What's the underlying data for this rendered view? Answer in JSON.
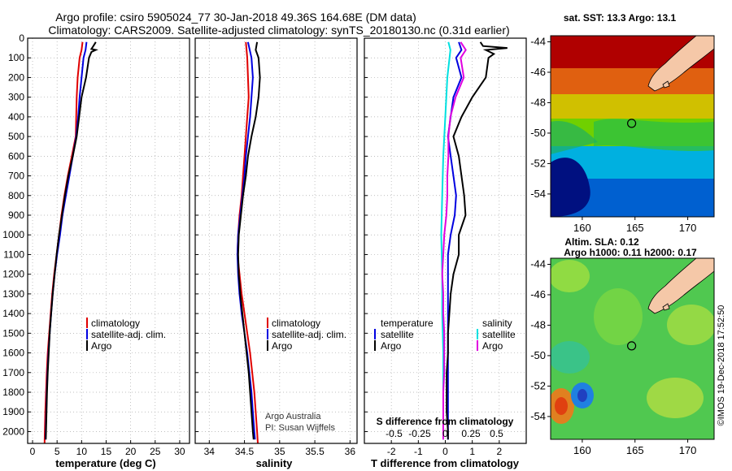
{
  "header": {
    "title_line1": "Argo profile: csiro 5905024_77 30-Jan-2018 49.36S 164.68E (DM data)",
    "title_line2": "Climatology: CARS2009. Satellite-adjusted climatology: synTS_20180130.nc (0.31d earlier)"
  },
  "colors": {
    "climatology": "#e00000",
    "satellite": "#0000e0",
    "argo": "#000000",
    "salinity_satellite": "#00e0e0",
    "salinity_argo": "#e000e0",
    "grid": "#aaaaaa"
  },
  "depth_axis": {
    "ylim": [
      2060,
      0
    ],
    "ticks": [
      "0",
      "100",
      "200",
      "300",
      "400",
      "500",
      "600",
      "700",
      "800",
      "900",
      "1000",
      "1100",
      "1200",
      "1300",
      "1400",
      "1500",
      "1600",
      "1700",
      "1800",
      "1900",
      "2000"
    ]
  },
  "credit": {
    "line1": "Argo Australia",
    "line2": "PI: Susan Wijffels"
  },
  "stamp": "©IMOS 19-Dec-2018 17:52:50",
  "chart_data": [
    {
      "id": "temperature",
      "type": "line",
      "xlabel": "temperature (deg C)",
      "xlim": [
        -1,
        32
      ],
      "xticks": [
        "0",
        "5",
        "10",
        "15",
        "20",
        "25",
        "30"
      ],
      "legend": [
        "climatology",
        "satellite-adj. clim.",
        "Argo"
      ],
      "series": [
        {
          "name": "climatology",
          "color": "#e00000",
          "points": [
            [
              10.2,
              20
            ],
            [
              10.0,
              60
            ],
            [
              9.6,
              100
            ],
            [
              9.2,
              200
            ],
            [
              9.0,
              300
            ],
            [
              8.9,
              400
            ],
            [
              8.8,
              500
            ],
            [
              8.0,
              600
            ],
            [
              7.2,
              700
            ],
            [
              6.5,
              800
            ],
            [
              5.9,
              900
            ],
            [
              5.4,
              1000
            ],
            [
              4.9,
              1100
            ],
            [
              4.4,
              1200
            ],
            [
              4.0,
              1300
            ],
            [
              3.7,
              1400
            ],
            [
              3.4,
              1500
            ],
            [
              3.1,
              1600
            ],
            [
              2.9,
              1700
            ],
            [
              2.75,
              1800
            ],
            [
              2.6,
              1900
            ],
            [
              2.5,
              2000
            ],
            [
              2.45,
              2060
            ]
          ]
        },
        {
          "name": "satellite-adj. clim.",
          "color": "#0000e0",
          "points": [
            [
              11.0,
              20
            ],
            [
              10.8,
              60
            ],
            [
              10.4,
              100
            ],
            [
              10.0,
              200
            ],
            [
              9.6,
              300
            ],
            [
              9.3,
              400
            ],
            [
              8.9,
              500
            ],
            [
              8.2,
              600
            ],
            [
              7.5,
              700
            ],
            [
              6.8,
              800
            ],
            [
              6.1,
              900
            ],
            [
              5.6,
              1000
            ],
            [
              5.0,
              1100
            ],
            [
              4.5,
              1200
            ],
            [
              4.1,
              1300
            ],
            [
              3.8,
              1400
            ],
            [
              3.5,
              1500
            ],
            [
              3.25,
              1600
            ],
            [
              3.05,
              1700
            ],
            [
              2.9,
              1800
            ],
            [
              2.8,
              1900
            ],
            [
              2.7,
              2000
            ],
            [
              2.65,
              2040
            ]
          ]
        },
        {
          "name": "Argo",
          "color": "#000000",
          "points": [
            [
              12.9,
              20
            ],
            [
              12.4,
              40
            ],
            [
              12.0,
              55
            ],
            [
              12.9,
              60
            ],
            [
              12.0,
              70
            ],
            [
              11.5,
              100
            ],
            [
              10.9,
              200
            ],
            [
              10.0,
              300
            ],
            [
              9.5,
              400
            ],
            [
              9.0,
              500
            ],
            [
              8.2,
              600
            ],
            [
              7.3,
              700
            ],
            [
              6.6,
              800
            ],
            [
              6.0,
              900
            ],
            [
              5.4,
              1000
            ],
            [
              4.9,
              1100
            ],
            [
              4.5,
              1200
            ],
            [
              4.1,
              1300
            ],
            [
              3.8,
              1400
            ],
            [
              3.5,
              1500
            ],
            [
              3.3,
              1600
            ],
            [
              3.1,
              1700
            ],
            [
              2.95,
              1800
            ],
            [
              2.85,
              1900
            ],
            [
              2.75,
              2000
            ],
            [
              2.7,
              2040
            ]
          ]
        }
      ]
    },
    {
      "id": "salinity",
      "type": "line",
      "xlabel": "salinity",
      "xlim": [
        33.8,
        36.1
      ],
      "xticks": [
        "34",
        "34.5",
        "35",
        "35.5",
        "36"
      ],
      "legend": [
        "climatology",
        "satellite-adj. clim.",
        "Argo"
      ],
      "series": [
        {
          "name": "climatology",
          "color": "#e00000",
          "points": [
            [
              34.52,
              20
            ],
            [
              34.54,
              100
            ],
            [
              34.55,
              200
            ],
            [
              34.56,
              300
            ],
            [
              34.54,
              400
            ],
            [
              34.52,
              500
            ],
            [
              34.5,
              600
            ],
            [
              34.48,
              700
            ],
            [
              34.46,
              800
            ],
            [
              34.43,
              900
            ],
            [
              34.41,
              1000
            ],
            [
              34.4,
              1100
            ],
            [
              34.43,
              1200
            ],
            [
              34.46,
              1300
            ],
            [
              34.5,
              1400
            ],
            [
              34.54,
              1500
            ],
            [
              34.58,
              1600
            ],
            [
              34.61,
              1700
            ],
            [
              34.64,
              1800
            ],
            [
              34.66,
              1900
            ],
            [
              34.68,
              2000
            ],
            [
              34.69,
              2060
            ]
          ]
        },
        {
          "name": "satellite-adj. clim.",
          "color": "#0000e0",
          "points": [
            [
              34.55,
              20
            ],
            [
              34.6,
              100
            ],
            [
              34.62,
              200
            ],
            [
              34.6,
              300
            ],
            [
              34.58,
              400
            ],
            [
              34.55,
              500
            ],
            [
              34.52,
              600
            ],
            [
              34.5,
              700
            ],
            [
              34.47,
              800
            ],
            [
              34.44,
              900
            ],
            [
              34.41,
              1000
            ],
            [
              34.4,
              1100
            ],
            [
              34.41,
              1200
            ],
            [
              34.43,
              1300
            ],
            [
              34.46,
              1400
            ],
            [
              34.5,
              1500
            ],
            [
              34.54,
              1600
            ],
            [
              34.57,
              1700
            ],
            [
              34.6,
              1800
            ],
            [
              34.62,
              1900
            ],
            [
              34.64,
              2000
            ],
            [
              34.65,
              2040
            ]
          ]
        },
        {
          "name": "Argo",
          "color": "#000000",
          "points": [
            [
              34.68,
              20
            ],
            [
              34.66,
              60
            ],
            [
              34.7,
              100
            ],
            [
              34.72,
              200
            ],
            [
              34.7,
              300
            ],
            [
              34.66,
              400
            ],
            [
              34.6,
              500
            ],
            [
              34.55,
              600
            ],
            [
              34.52,
              700
            ],
            [
              34.48,
              800
            ],
            [
              34.45,
              900
            ],
            [
              34.42,
              1000
            ],
            [
              34.41,
              1100
            ],
            [
              34.42,
              1200
            ],
            [
              34.44,
              1300
            ],
            [
              34.47,
              1400
            ],
            [
              34.5,
              1500
            ],
            [
              34.53,
              1600
            ],
            [
              34.56,
              1700
            ],
            [
              34.58,
              1800
            ],
            [
              34.6,
              1900
            ],
            [
              34.62,
              2000
            ],
            [
              34.63,
              2040
            ]
          ]
        }
      ]
    },
    {
      "id": "difference",
      "type": "line",
      "xlabel": "T difference from climatology",
      "xlabel_top": "S difference from climatology",
      "xlim": [
        -3,
        3
      ],
      "xticks": [
        "-2",
        "-1",
        "0",
        "1",
        "2"
      ],
      "xticks_top": [
        "-0.5",
        "-0.25",
        "0",
        "0.25",
        "0.5"
      ],
      "legend_left": {
        "title": "temperature",
        "items": [
          "satellite",
          "Argo"
        ]
      },
      "legend_right": {
        "title": "salinity",
        "items": [
          "satellite",
          "Argo"
        ]
      },
      "series": [
        {
          "name": "temperature satellite",
          "color": "#0000e0",
          "points": [
            [
              0.5,
              20
            ],
            [
              0.6,
              60
            ],
            [
              0.4,
              100
            ],
            [
              0.6,
              200
            ],
            [
              0.3,
              300
            ],
            [
              0.2,
              400
            ],
            [
              0.1,
              500
            ],
            [
              0.2,
              600
            ],
            [
              0.3,
              700
            ],
            [
              0.4,
              800
            ],
            [
              0.35,
              900
            ],
            [
              0.2,
              1000
            ],
            [
              0.1,
              1100
            ],
            [
              0.1,
              1200
            ],
            [
              0.1,
              1300
            ],
            [
              0.1,
              1400
            ],
            [
              0.1,
              1500
            ],
            [
              0.1,
              1600
            ],
            [
              0.1,
              1700
            ],
            [
              0.1,
              1800
            ],
            [
              0.1,
              1900
            ],
            [
              0.1,
              2000
            ],
            [
              0.1,
              2040
            ]
          ]
        },
        {
          "name": "temperature Argo",
          "color": "#000000",
          "points": [
            [
              1.3,
              20
            ],
            [
              1.4,
              40
            ],
            [
              2.3,
              50
            ],
            [
              1.5,
              60
            ],
            [
              1.8,
              80
            ],
            [
              1.6,
              100
            ],
            [
              1.5,
              200
            ],
            [
              1.0,
              300
            ],
            [
              0.6,
              400
            ],
            [
              0.3,
              500
            ],
            [
              0.5,
              600
            ],
            [
              0.6,
              700
            ],
            [
              0.7,
              800
            ],
            [
              0.75,
              900
            ],
            [
              0.5,
              1000
            ],
            [
              0.5,
              1100
            ],
            [
              0.3,
              1200
            ],
            [
              0.2,
              1300
            ],
            [
              0.15,
              1400
            ],
            [
              0.1,
              1500
            ],
            [
              0.1,
              1600
            ],
            [
              0.05,
              1700
            ],
            [
              0.05,
              1800
            ],
            [
              0.05,
              1900
            ],
            [
              0.1,
              2000
            ],
            [
              0.1,
              2040
            ]
          ]
        },
        {
          "name": "salinity satellite",
          "color": "#00e0e0",
          "points": [
            [
              0.03,
              20
            ],
            [
              0.05,
              60
            ],
            [
              0.02,
              200
            ],
            [
              0.0,
              400
            ],
            [
              -0.02,
              600
            ],
            [
              -0.03,
              800
            ],
            [
              -0.04,
              1000
            ],
            [
              -0.03,
              1200
            ],
            [
              -0.03,
              1400
            ],
            [
              -0.02,
              1600
            ],
            [
              -0.02,
              1800
            ],
            [
              -0.02,
              2000
            ],
            [
              -0.02,
              2040
            ]
          ]
        },
        {
          "name": "salinity Argo",
          "color": "#e000e0",
          "points": [
            [
              0.15,
              20
            ],
            [
              0.2,
              60
            ],
            [
              0.15,
              100
            ],
            [
              0.18,
              200
            ],
            [
              0.1,
              300
            ],
            [
              0.05,
              400
            ],
            [
              0.03,
              500
            ],
            [
              0.03,
              600
            ],
            [
              0.02,
              700
            ],
            [
              0.02,
              800
            ],
            [
              0.01,
              900
            ],
            [
              -0.01,
              1000
            ],
            [
              -0.02,
              1100
            ],
            [
              -0.03,
              1200
            ],
            [
              -0.02,
              1300
            ],
            [
              -0.02,
              1400
            ],
            [
              -0.01,
              1500
            ],
            [
              -0.01,
              1600
            ],
            [
              -0.01,
              1700
            ],
            [
              -0.02,
              1800
            ],
            [
              -0.02,
              1900
            ],
            [
              -0.02,
              2000
            ],
            [
              -0.02,
              2040
            ]
          ]
        }
      ]
    },
    {
      "id": "sst_map",
      "type": "heatmap",
      "title": "sat. SST: 13.3 Argo: 13.1",
      "xlim": [
        157,
        172.5
      ],
      "ylim": [
        -55.5,
        -43.6
      ],
      "xticks": [
        "160",
        "165",
        "170"
      ],
      "yticks": [
        "-44",
        "-46",
        "-48",
        "-50",
        "-52",
        "-54"
      ],
      "marker": {
        "lon": 164.68,
        "lat": -49.36
      }
    },
    {
      "id": "sla_map",
      "type": "heatmap",
      "title_line1": "Altim. SLA: 0.12",
      "title_line2": "Argo h1000: 0.11 h2000: 0.17",
      "xlim": [
        157,
        172.5
      ],
      "ylim": [
        -55.5,
        -43.6
      ],
      "xticks": [
        "160",
        "165",
        "170"
      ],
      "yticks": [
        "-44",
        "-46",
        "-48",
        "-50",
        "-52",
        "-54"
      ],
      "marker": {
        "lon": 164.68,
        "lat": -49.36
      }
    }
  ]
}
